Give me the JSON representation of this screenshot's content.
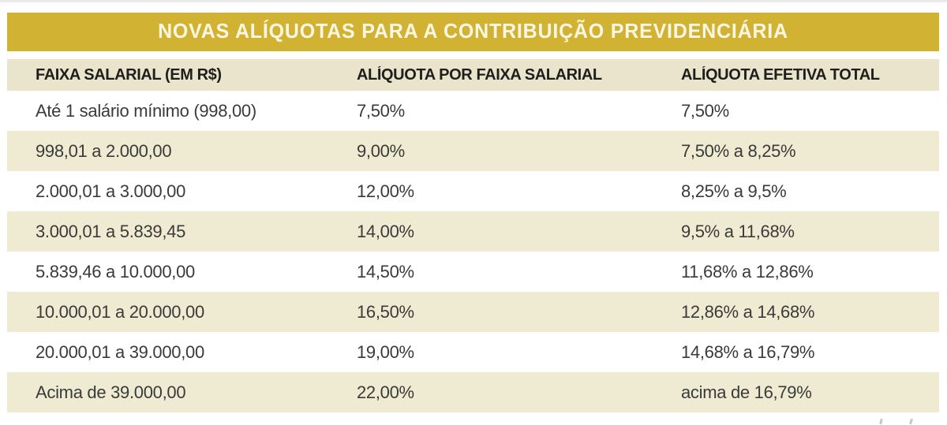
{
  "title": "NOVAS ALÍQUOTAS PARA A CONTRIBUIÇÃO PREVIDENCIÁRIA",
  "colors": {
    "title_bar_background": "#d2b233",
    "title_text": "#fbf7e4",
    "header_row_background": "#e9e4cb",
    "stripe_row_background": "#efebd3",
    "white_row_background": "#ffffff",
    "header_text": "#1e1e1c",
    "data_text": "#3a3a38",
    "page_background": "#ffffff"
  },
  "table": {
    "columns": [
      "FAIXA SALARIAL (EM R$)",
      "ALÍQUOTA POR FAIXA SALARIAL",
      "ALÍQUOTA EFETIVA TOTAL"
    ]
  },
  "chart_data": {
    "type": "table",
    "title": "NOVAS ALÍQUOTAS PARA A CONTRIBUIÇÃO PREVIDENCIÁRIA",
    "columns": [
      "FAIXA SALARIAL (EM R$)",
      "ALÍQUOTA POR FAIXA SALARIAL",
      "ALÍQUOTA EFETIVA TOTAL"
    ],
    "rows": [
      [
        "Até 1 salário mínimo (998,00)",
        "7,50%",
        "7,50%"
      ],
      [
        "998,01 a 2.000,00",
        "9,00%",
        "7,50% a 8,25%"
      ],
      [
        "2.000,01 a 3.000,00",
        "12,00%",
        "8,25% a 9,5%"
      ],
      [
        "3.000,01 a 5.839,45",
        "14,00%",
        "9,5% a 11,68%"
      ],
      [
        "5.839,46 a 10.000,00",
        "14,50%",
        "11,68% a 12,86%"
      ],
      [
        "10.000,01 a 20.000,00",
        "16,50%",
        "12,86% a 14,68%"
      ],
      [
        "20.000,01 a 39.000,00",
        "19,00%",
        "14,68% a 16,79%"
      ],
      [
        "Acima de 39.000,00",
        "22,00%",
        "acima de 16,79%"
      ]
    ],
    "layout": {
      "striped": true,
      "stripe_pattern": "even rows (2nd, 4th, ...) are cream, others white",
      "header_style": "bold black on beige",
      "title_style": "bold off-white on mustard gold bar"
    }
  }
}
